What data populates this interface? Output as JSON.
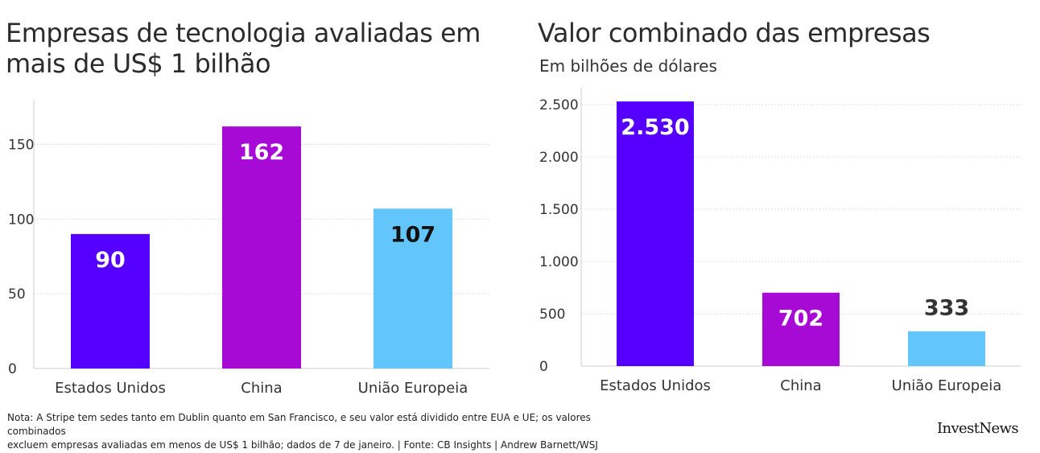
{
  "chart_data": [
    {
      "type": "bar",
      "title": "Empresas de tecnologia avaliadas em mais de US$ 1 bilhão",
      "subtitle": "",
      "categories": [
        "Estados Unidos",
        "China",
        "União Europeia"
      ],
      "values": [
        90,
        162,
        107
      ],
      "value_labels": [
        "90",
        "162",
        "107"
      ],
      "colors": [
        "#5500ff",
        "#a80ad6",
        "#63c6fb"
      ],
      "label_colors": [
        "#ffffff",
        "#ffffff",
        "#111111"
      ],
      "label_position": [
        "inside",
        "inside",
        "inside"
      ],
      "yticks": [
        0,
        50,
        100,
        150
      ],
      "ytick_labels": [
        "0",
        "50",
        "100",
        "150"
      ],
      "ylim": [
        0,
        175
      ],
      "xlabel": "",
      "ylabel": "",
      "grid": true
    },
    {
      "type": "bar",
      "title": "Valor combinado das empresas",
      "subtitle": "Em bilhões de dólares",
      "categories": [
        "Estados Unidos",
        "China",
        "União Europeia"
      ],
      "values": [
        2530,
        702,
        333
      ],
      "value_labels": [
        "2.530",
        "702",
        "333"
      ],
      "colors": [
        "#5500ff",
        "#a80ad6",
        "#63c6fb"
      ],
      "label_colors": [
        "#ffffff",
        "#ffffff",
        "#333333"
      ],
      "label_position": [
        "inside",
        "inside",
        "above"
      ],
      "yticks": [
        0,
        500,
        1000,
        1500,
        2000,
        2500
      ],
      "ytick_labels": [
        "0",
        "500",
        "1.000",
        "1.500",
        "2.000",
        "2.500"
      ],
      "ylim": [
        0,
        2600
      ],
      "xlabel": "",
      "ylabel": "",
      "grid": true
    }
  ],
  "footer": {
    "note_line1": "Nota: A Stripe tem sedes tanto em Dublin quanto em San Francisco, e seu valor está dividido entre EUA e UE; os valores combinados",
    "note_line2": "excluem empresas avaliadas em menos de US$ 1 bilhão; dados de 7 de janeiro. | Fonte: CB Insights | Andrew Barnett/WSJ",
    "logo_text": "InvestNews"
  }
}
